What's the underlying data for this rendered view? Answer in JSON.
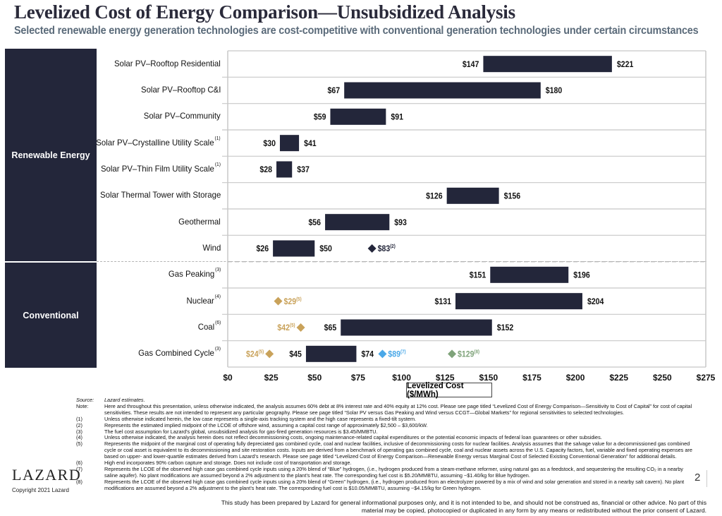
{
  "title": "Levelized Cost of Energy Comparison—Unsubsidized Analysis",
  "subtitle": "Selected renewable energy generation technologies are cost-competitive with conventional generation technologies under certain circumstances",
  "categories": {
    "renewable": "Renewable Energy",
    "conventional": "Conventional"
  },
  "colors": {
    "bar": "#23263a",
    "category_box": "#23263a",
    "diamond_dark": "#23263a",
    "diamond_gold": "#c9a25a",
    "diamond_blue": "#4aa8e8",
    "diamond_green": "#7fa37a",
    "grid": "#c8c8c8"
  },
  "chart_data": {
    "type": "bar",
    "subtype": "floating-range-horizontal",
    "title": "Levelized Cost of Energy Comparison—Unsubsidized Analysis",
    "xlabel": "Levelized Cost ($/MWh)",
    "ylabel": "",
    "xlim": [
      0,
      275
    ],
    "x_ticks": [
      0,
      25,
      50,
      75,
      100,
      125,
      150,
      175,
      200,
      225,
      250,
      275
    ],
    "x_tick_labels": [
      "$0",
      "$25",
      "$50",
      "$75",
      "$100",
      "$125",
      "$150",
      "$175",
      "$200",
      "$225",
      "$250",
      "$275"
    ],
    "grid": "horizontal row separators",
    "groups": [
      {
        "name": "Renewable Energy",
        "rows": [
          0,
          1,
          2,
          3,
          4,
          5,
          6,
          7
        ]
      },
      {
        "name": "Conventional",
        "rows": [
          8,
          9,
          10,
          11
        ]
      }
    ],
    "rows": [
      {
        "label": "Solar PV–Rooftop Residential",
        "footnote": "",
        "low": 147,
        "high": 221,
        "low_label": "$147",
        "high_label": "$221",
        "markers": []
      },
      {
        "label": "Solar PV–Rooftop C&I",
        "footnote": "",
        "low": 67,
        "high": 180,
        "low_label": "$67",
        "high_label": "$180",
        "markers": []
      },
      {
        "label": "Solar PV–Community",
        "footnote": "",
        "low": 59,
        "high": 91,
        "low_label": "$59",
        "high_label": "$91",
        "markers": []
      },
      {
        "label": "Solar PV–Crystalline Utility Scale",
        "footnote": "(1)",
        "low": 30,
        "high": 41,
        "low_label": "$30",
        "high_label": "$41",
        "markers": []
      },
      {
        "label": "Solar PV–Thin Film Utility Scale",
        "footnote": "(1)",
        "low": 28,
        "high": 37,
        "low_label": "$28",
        "high_label": "$37",
        "markers": []
      },
      {
        "label": "Solar Thermal Tower with Storage",
        "footnote": "",
        "low": 126,
        "high": 156,
        "low_label": "$126",
        "high_label": "$156",
        "markers": []
      },
      {
        "label": "Geothermal",
        "footnote": "",
        "low": 56,
        "high": 93,
        "low_label": "$56",
        "high_label": "$93",
        "markers": []
      },
      {
        "label": "Wind",
        "footnote": "",
        "low": 26,
        "high": 50,
        "low_label": "$26",
        "high_label": "$50",
        "markers": [
          {
            "value": 83,
            "label": "$83",
            "footnote": "(2)",
            "color": "dark",
            "side": "right"
          }
        ]
      },
      {
        "label": "Gas Peaking",
        "footnote": "(3)",
        "low": 151,
        "high": 196,
        "low_label": "$151",
        "high_label": "$196",
        "markers": []
      },
      {
        "label": "Nuclear",
        "footnote": "(4)",
        "low": 131,
        "high": 204,
        "low_label": "$131",
        "high_label": "$204",
        "markers": [
          {
            "value": 29,
            "label": "$29",
            "footnote": "(5)",
            "color": "gold",
            "side": "right"
          }
        ]
      },
      {
        "label": "Coal",
        "footnote": "(6)",
        "low": 65,
        "high": 152,
        "low_label": "$65",
        "high_label": "$152",
        "markers": [
          {
            "value": 42,
            "label": "$42",
            "footnote": "(5)",
            "color": "gold",
            "side": "left"
          }
        ]
      },
      {
        "label": "Gas Combined Cycle",
        "footnote": "(3)",
        "low": 45,
        "high": 74,
        "low_label": "$45",
        "high_label": "$74",
        "markers": [
          {
            "value": 24,
            "label": "$24",
            "footnote": "(5)",
            "color": "gold",
            "side": "left"
          },
          {
            "value": 89,
            "label": "$89",
            "footnote": "(7)",
            "color": "blue",
            "side": "right"
          },
          {
            "value": 129,
            "label": "$129",
            "footnote": "(8)",
            "color": "green",
            "side": "right"
          }
        ]
      }
    ]
  },
  "notes": [
    {
      "key": "Source:",
      "italic": true,
      "text": "Lazard estimates."
    },
    {
      "key": "Note:",
      "italic": false,
      "text": "Here and throughout this presentation, unless otherwise indicated, the analysis assumes 60% debt at 8% interest rate and 40% equity at 12% cost. Please see page titled “Levelized Cost of Energy Comparison—Sensitivity to Cost of Capital” for cost of capital sensitivities. These results are not intended to represent any particular geography. Please see page titled “Solar PV versus Gas Peaking and Wind versus CCGT—Global Markets” for regional sensitivities to selected technologies."
    },
    {
      "key": "(1)",
      "italic": false,
      "text": "Unless otherwise indicated herein, the low case represents a single-axis tracking system and the high case represents a fixed-tilt system."
    },
    {
      "key": "(2)",
      "italic": false,
      "text": "Represents the estimated implied midpoint of the LCOE of offshore wind, assuming a capital cost range of approximately $2,500 – $3,600/kW."
    },
    {
      "key": "(3)",
      "italic": false,
      "text": "The fuel cost assumption for Lazard’s global, unsubsidized analysis for gas-fired generation resources is $3.45/MMBTU."
    },
    {
      "key": "(4)",
      "italic": false,
      "text": "Unless otherwise indicated, the analysis herein does not reflect decommissioning costs, ongoing maintenance-related capital expenditures or the potential economic impacts of federal loan guarantees or other subsidies."
    },
    {
      "key": "(5)",
      "italic": false,
      "text": "Represents the midpoint of the marginal cost of operating fully depreciated gas combined cycle, coal and nuclear facilities, inclusive of decommissioning costs for nuclear facilities. Analysis assumes that the salvage value for a decommissioned gas combined cycle or coal asset is equivalent to its decommissioning and site restoration costs. Inputs are derived from a benchmark of operating gas combined cycle, coal and nuclear assets across the U.S. Capacity factors, fuel, variable and fixed operating expenses are based on upper- and lower-quartile estimates derived from Lazard’s research. Please see page titled “Levelized Cost of Energy Comparison—Renewable Energy versus Marginal Cost of Selected Existing Conventional Generation” for additional details."
    },
    {
      "key": "(6)",
      "italic": false,
      "text": "High end incorporates 90% carbon capture and storage. Does not include cost of transportation and storage."
    },
    {
      "key": "(7)",
      "italic": false,
      "text": "Represents the LCOE of the observed high case gas combined cycle inputs using a 20% blend of “Blue” hydrogen, (i.e., hydrogen produced from a steam-methane reformer, using natural gas as a feedstock, and sequestering the resulting CO₂ in a nearby saline aquifer). No plant modifications are assumed beyond a 2% adjustment to the plant’s heat rate. The corresponding fuel cost is $5.20/MMBTU, assuming ~$1.40/kg for Blue hydrogen."
    },
    {
      "key": "(8)",
      "italic": false,
      "text": "Represents the LCOE of the observed high case gas combined cycle inputs using a 20% blend of “Green” hydrogen, (i.e., hydrogen produced from an electrolyzer powered by a mix of wind and solar generation and stored in a nearby salt cavern). No plant modifications are assumed beyond a 2% adjustment to the plant’s heat rate. The corresponding fuel cost is $10.05/MMBTU, assuming ~$4.15/kg for Green hydrogen."
    }
  ],
  "disclaimer": "This study has been prepared by Lazard for general informational purposes only, and it is not intended to be, and should not be construed as, financial or other advice. No part of this material may be copied, photocopied or duplicated in any form by any means or redistributed without the prior consent of Lazard.",
  "footer": {
    "logo": "LAZARD",
    "copyright": "Copyright 2021 Lazard",
    "page_number": "2"
  }
}
